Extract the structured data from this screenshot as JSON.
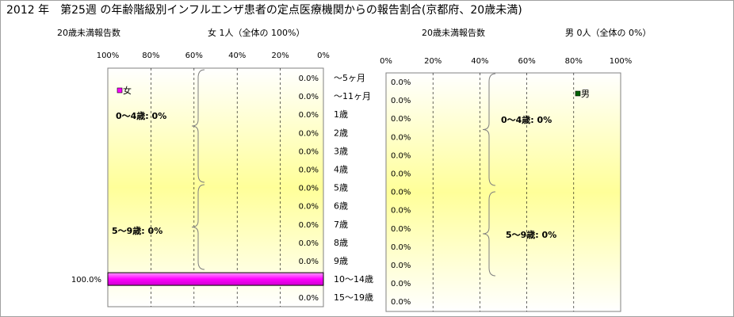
{
  "title": "2012 年　第25週 の年齢階級別インフルエンザ患者の定点医療機関からの報告割合(京都府、20歳未満)",
  "left_header": {
    "label": "20歳未満報告数",
    "summary": "女 1人（全体の 100%）"
  },
  "right_header": {
    "label": "20歳未満報告数",
    "summary": "男 0人（全体の 0%）"
  },
  "chart_data": [
    {
      "type": "bar",
      "orientation": "horizontal",
      "direction": "right-to-left",
      "series": [
        {
          "name": "女",
          "values": [
            0,
            0,
            0,
            0,
            0,
            0,
            0,
            0,
            0,
            0,
            0,
            100,
            0
          ],
          "color": "#ff00ff"
        }
      ],
      "value_labels": [
        "0.0%",
        "0.0%",
        "0.0%",
        "0.0%",
        "0.0%",
        "0.0%",
        "0.0%",
        "0.0%",
        "0.0%",
        "0.0%",
        "0.0%",
        "100.0%",
        "0.0%"
      ],
      "xlim": [
        0,
        100
      ],
      "x_ticks": [
        "100%",
        "80%",
        "60%",
        "40%",
        "20%",
        "0%"
      ],
      "legend": "女",
      "annotations": [
        "0～4歳:  0%",
        "5～9歳:  0%"
      ]
    },
    {
      "type": "bar",
      "orientation": "horizontal",
      "direction": "left-to-right",
      "series": [
        {
          "name": "男",
          "values": [
            0,
            0,
            0,
            0,
            0,
            0,
            0,
            0,
            0,
            0,
            0,
            0,
            0
          ],
          "color": "#006400"
        }
      ],
      "value_labels": [
        "0.0%",
        "0.0%",
        "0.0%",
        "0.0%",
        "0.0%",
        "0.0%",
        "0.0%",
        "0.0%",
        "0.0%",
        "0.0%",
        "0.0%",
        "0.0%",
        "0.0%"
      ],
      "xlim": [
        0,
        100
      ],
      "x_ticks": [
        "0%",
        "20%",
        "40%",
        "60%",
        "80%",
        "100%"
      ],
      "legend": "男",
      "annotations": [
        "0～4歳:  0%",
        "5～9歳:  0%"
      ]
    }
  ],
  "categories": [
    "～5ヶ月",
    "～11ヶ月",
    "1歳",
    "2歳",
    "3歳",
    "4歳",
    "5歳",
    "6歳",
    "7歳",
    "8歳",
    "9歳",
    "10～14歳",
    "15～19歳"
  ],
  "colors": {
    "plot_yellow": "#ffff99",
    "female_bar": "#ff00ff",
    "male_marker": "#006400"
  }
}
